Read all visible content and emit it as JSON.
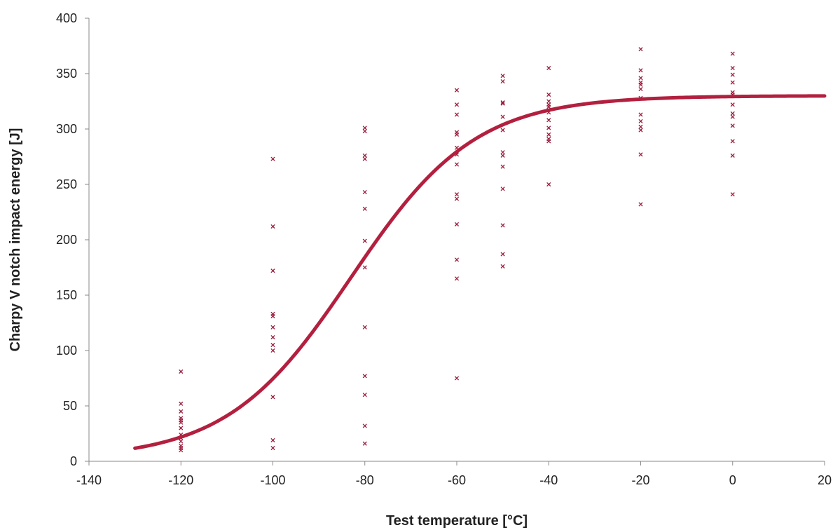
{
  "chart_data": {
    "type": "scatter",
    "title": "",
    "xlabel": "Test temperature [°C]",
    "ylabel": "Charpy V notch impact energy [J]",
    "xlim": [
      -140,
      20
    ],
    "ylim": [
      0,
      400
    ],
    "xticks": [
      -140,
      -120,
      -100,
      -80,
      -60,
      -40,
      -20,
      0,
      20
    ],
    "yticks": [
      0,
      50,
      100,
      150,
      200,
      250,
      300,
      350,
      400
    ],
    "grid": false,
    "legend": "none",
    "colors": {
      "marker": "#9b1b3b",
      "curve": "#b3203f",
      "axis": "#8a8a8a"
    },
    "series": [
      {
        "marker": "x",
        "points": [
          [
            -120,
            81
          ],
          [
            -120,
            52
          ],
          [
            -120,
            45
          ],
          [
            -120,
            39
          ],
          [
            -120,
            37
          ],
          [
            -120,
            35
          ],
          [
            -120,
            30
          ],
          [
            -120,
            24
          ],
          [
            -120,
            21
          ],
          [
            -120,
            18
          ],
          [
            -120,
            14
          ],
          [
            -120,
            12
          ],
          [
            -120,
            10
          ],
          [
            -100,
            273
          ],
          [
            -100,
            212
          ],
          [
            -100,
            172
          ],
          [
            -100,
            133
          ],
          [
            -100,
            131
          ],
          [
            -100,
            121
          ],
          [
            -100,
            112
          ],
          [
            -100,
            105
          ],
          [
            -100,
            100
          ],
          [
            -100,
            58
          ],
          [
            -100,
            19
          ],
          [
            -100,
            12
          ],
          [
            -80,
            301
          ],
          [
            -80,
            298
          ],
          [
            -80,
            276
          ],
          [
            -80,
            273
          ],
          [
            -80,
            243
          ],
          [
            -80,
            228
          ],
          [
            -80,
            199
          ],
          [
            -80,
            175
          ],
          [
            -80,
            121
          ],
          [
            -80,
            77
          ],
          [
            -80,
            60
          ],
          [
            -80,
            32
          ],
          [
            -80,
            16
          ],
          [
            -60,
            335
          ],
          [
            -60,
            322
          ],
          [
            -60,
            313
          ],
          [
            -60,
            297
          ],
          [
            -60,
            295
          ],
          [
            -60,
            283
          ],
          [
            -60,
            277
          ],
          [
            -60,
            268
          ],
          [
            -60,
            241
          ],
          [
            -60,
            237
          ],
          [
            -60,
            214
          ],
          [
            -60,
            182
          ],
          [
            -60,
            165
          ],
          [
            -60,
            75
          ],
          [
            -50,
            348
          ],
          [
            -50,
            343
          ],
          [
            -50,
            324
          ],
          [
            -50,
            323
          ],
          [
            -50,
            311
          ],
          [
            -50,
            299
          ],
          [
            -50,
            279
          ],
          [
            -50,
            276
          ],
          [
            -50,
            266
          ],
          [
            -50,
            246
          ],
          [
            -50,
            213
          ],
          [
            -50,
            187
          ],
          [
            -50,
            176
          ],
          [
            -40,
            355
          ],
          [
            -40,
            331
          ],
          [
            -40,
            325
          ],
          [
            -40,
            322
          ],
          [
            -40,
            320
          ],
          [
            -40,
            315
          ],
          [
            -40,
            308
          ],
          [
            -40,
            301
          ],
          [
            -40,
            295
          ],
          [
            -40,
            291
          ],
          [
            -40,
            289
          ],
          [
            -40,
            250
          ],
          [
            -20,
            372
          ],
          [
            -20,
            353
          ],
          [
            -20,
            346
          ],
          [
            -20,
            342
          ],
          [
            -20,
            340
          ],
          [
            -20,
            336
          ],
          [
            -20,
            328
          ],
          [
            -20,
            313
          ],
          [
            -20,
            307
          ],
          [
            -20,
            302
          ],
          [
            -20,
            299
          ],
          [
            -20,
            277
          ],
          [
            -20,
            232
          ],
          [
            0,
            368
          ],
          [
            0,
            355
          ],
          [
            0,
            349
          ],
          [
            0,
            342
          ],
          [
            0,
            333
          ],
          [
            0,
            331
          ],
          [
            0,
            322
          ],
          [
            0,
            314
          ],
          [
            0,
            311
          ],
          [
            0,
            303
          ],
          [
            0,
            289
          ],
          [
            0,
            276
          ],
          [
            0,
            241
          ]
        ]
      },
      {
        "type": "line",
        "curve": "tanh",
        "params": {
          "lower_shelf": 2,
          "upper_shelf": 330,
          "t0": -83,
          "c": 27
        },
        "x_range": [
          -130,
          20
        ]
      }
    ]
  }
}
